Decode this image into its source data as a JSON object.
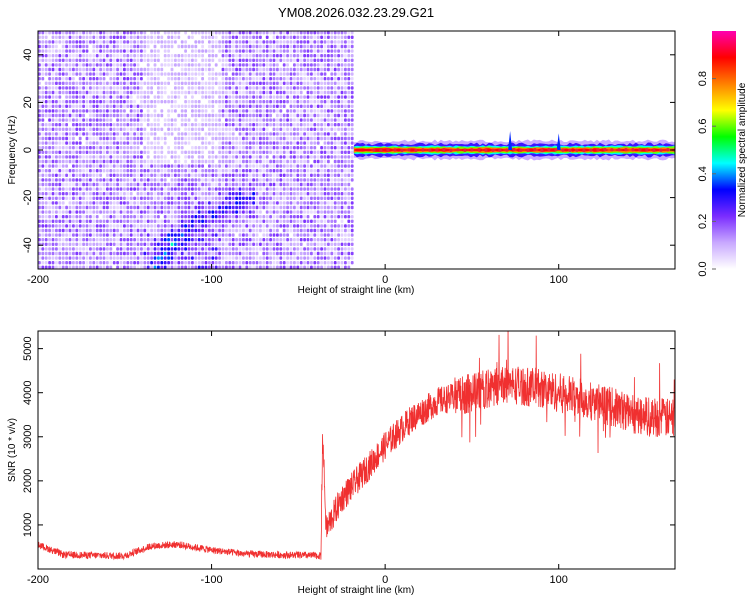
{
  "figure": {
    "title": "YM08.2026.032.23.29.G21"
  },
  "chart_data": [
    {
      "type": "heatmap",
      "xlabel": "Height of straight line (km)",
      "ylabel": "Frequency (Hz)",
      "xlim": [
        -200,
        167
      ],
      "ylim": [
        -50,
        50
      ],
      "xticks": [
        -200,
        -100,
        0,
        100
      ],
      "xtick_labels": [
        "-200",
        "-100",
        "0",
        "100"
      ],
      "yticks": [
        -40,
        -20,
        0,
        20,
        40
      ],
      "ytick_labels": [
        "-40",
        "-20",
        "0",
        "20",
        "40"
      ],
      "colorbar": {
        "label": "Normalized spectral amplitude",
        "range": [
          0,
          1
        ],
        "ticks": [
          0.0,
          0.2,
          0.4,
          0.6,
          0.8
        ],
        "tick_labels": [
          "0.0",
          "0.2",
          "0.4",
          "0.6",
          "0.8"
        ],
        "colors": [
          "#ffffff",
          "#c8a8ff",
          "#7a2cff",
          "#0000ff",
          "#00ffff",
          "#00ff00",
          "#ffff00",
          "#ff8000",
          "#ff0000",
          "#ff00b0"
        ]
      },
      "regions": [
        {
          "x_range": [
            -200,
            -18
          ],
          "description_amplitude": 0.15,
          "f_range": [
            -50,
            50
          ]
        },
        {
          "x_range": [
            -18,
            167
          ],
          "center_frequency": 0,
          "band_halfwidth": 2.5,
          "peak_amplitude": 0.95
        }
      ],
      "features": {
        "curved_streak": {
          "from": [
            -130,
            -48
          ],
          "to": [
            -80,
            -20
          ]
        },
        "spikes": [
          {
            "x": 72,
            "f": 8
          },
          {
            "x": 100,
            "f": 7
          }
        ]
      },
      "grid": false
    },
    {
      "type": "line",
      "xlabel": "Height of straight line (km)",
      "ylabel": "SNR (10 * v/v)",
      "xlim": [
        -200,
        167
      ],
      "ylim": [
        0,
        5400
      ],
      "xticks": [
        -200,
        -100,
        0,
        100
      ],
      "xtick_labels": [
        "-200",
        "-100",
        "0",
        "100"
      ],
      "yticks": [
        1000,
        2000,
        3000,
        4000,
        5000
      ],
      "ytick_labels": [
        "1000",
        "2000",
        "3000",
        "4000",
        "5000"
      ],
      "color": "#f03030",
      "envelope": [
        {
          "x": -200,
          "y": 550
        },
        {
          "x": -185,
          "y": 320
        },
        {
          "x": -150,
          "y": 300
        },
        {
          "x": -135,
          "y": 520
        },
        {
          "x": -120,
          "y": 560
        },
        {
          "x": -100,
          "y": 430
        },
        {
          "x": -80,
          "y": 340
        },
        {
          "x": -37,
          "y": 300
        },
        {
          "x": -36,
          "y": 3100
        },
        {
          "x": -34,
          "y": 900
        },
        {
          "x": -25,
          "y": 1600
        },
        {
          "x": -10,
          "y": 2300
        },
        {
          "x": 0,
          "y": 2800
        },
        {
          "x": 15,
          "y": 3400
        },
        {
          "x": 30,
          "y": 3800
        },
        {
          "x": 50,
          "y": 4000
        },
        {
          "x": 70,
          "y": 4200
        },
        {
          "x": 90,
          "y": 4100
        },
        {
          "x": 120,
          "y": 3800
        },
        {
          "x": 145,
          "y": 3500
        },
        {
          "x": 167,
          "y": 3400
        }
      ],
      "grid": false
    }
  ]
}
